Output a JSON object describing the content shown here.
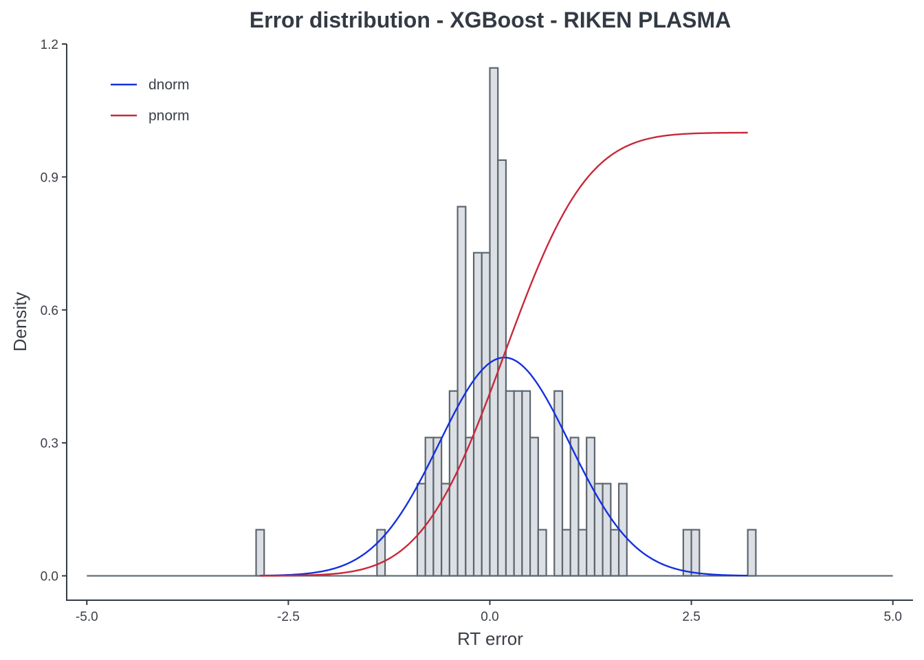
{
  "chart_data": {
    "type": "bar",
    "title": "Error distribution - XGBoost - RIKEN PLASMA",
    "xlabel": "RT error",
    "ylabel": "Density",
    "xlim": [
      -5.25,
      5.25
    ],
    "ylim": [
      -0.055,
      1.2
    ],
    "x_ticks": [
      -5.0,
      -2.5,
      0.0,
      2.5,
      5.0
    ],
    "x_tick_labels": [
      "-5.0",
      "-2.5",
      "0.0",
      "2.5",
      "5.0"
    ],
    "y_ticks": [
      0.0,
      0.3,
      0.6,
      0.9,
      1.2
    ],
    "y_tick_labels": [
      "0.0",
      "0.3",
      "0.6",
      "0.9",
      "1.2"
    ],
    "grid": false,
    "histogram": {
      "bin_width": 0.1,
      "bins_start": -5.0,
      "bins_end": 5.0,
      "bars": [
        {
          "x0": -2.9,
          "density": 0.104
        },
        {
          "x0": -1.4,
          "density": 0.104
        },
        {
          "x0": -0.9,
          "density": 0.208
        },
        {
          "x0": -0.8,
          "density": 0.312
        },
        {
          "x0": -0.7,
          "density": 0.312
        },
        {
          "x0": -0.6,
          "density": 0.208
        },
        {
          "x0": -0.5,
          "density": 0.417
        },
        {
          "x0": -0.4,
          "density": 0.833
        },
        {
          "x0": -0.3,
          "density": 0.312
        },
        {
          "x0": -0.2,
          "density": 0.729
        },
        {
          "x0": -0.1,
          "density": 0.729
        },
        {
          "x0": 0.0,
          "density": 1.146
        },
        {
          "x0": 0.1,
          "density": 0.938
        },
        {
          "x0": 0.2,
          "density": 0.417
        },
        {
          "x0": 0.3,
          "density": 0.417
        },
        {
          "x0": 0.4,
          "density": 0.417
        },
        {
          "x0": 0.5,
          "density": 0.312
        },
        {
          "x0": 0.6,
          "density": 0.104
        },
        {
          "x0": 0.8,
          "density": 0.417
        },
        {
          "x0": 0.9,
          "density": 0.104
        },
        {
          "x0": 1.0,
          "density": 0.312
        },
        {
          "x0": 1.1,
          "density": 0.104
        },
        {
          "x0": 1.2,
          "density": 0.312
        },
        {
          "x0": 1.3,
          "density": 0.208
        },
        {
          "x0": 1.4,
          "density": 0.208
        },
        {
          "x0": 1.5,
          "density": 0.104
        },
        {
          "x0": 1.6,
          "density": 0.208
        },
        {
          "x0": 2.4,
          "density": 0.104
        },
        {
          "x0": 2.5,
          "density": 0.104
        },
        {
          "x0": 3.2,
          "density": 0.104
        }
      ],
      "fill": "#dcdfe3",
      "stroke": "#5b6670"
    },
    "series": [
      {
        "name": "dnorm",
        "kind": "normal-density",
        "mean": 0.18,
        "sd": 0.81,
        "x_range": [
          -2.85,
          3.2
        ],
        "color": "#1330e0"
      },
      {
        "name": "pnorm",
        "kind": "normal-cdf",
        "mean": 0.18,
        "sd": 0.81,
        "x_range": [
          -2.85,
          3.2
        ],
        "color": "#c8283a"
      }
    ],
    "legend": {
      "position": "top-left",
      "entries": [
        "dnorm",
        "pnorm"
      ]
    }
  }
}
